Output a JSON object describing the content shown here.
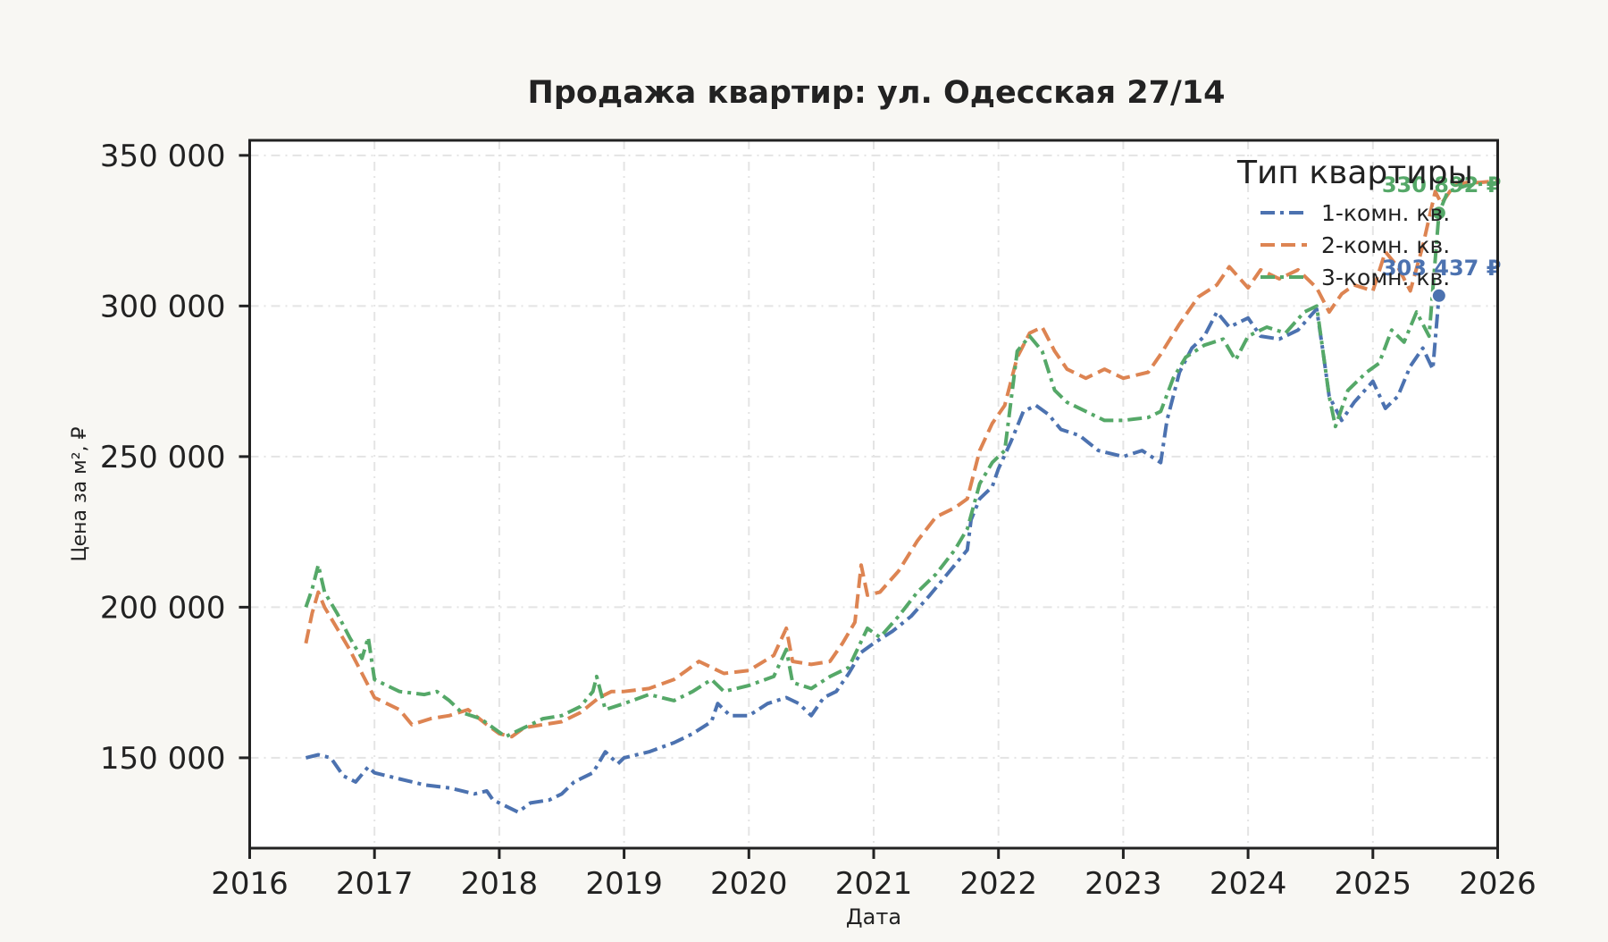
{
  "chart_data": {
    "type": "line",
    "title": "Продажа квартир: ул. Одесская 27/14",
    "xlabel": "Дата",
    "ylabel": "Цена за м², ₽",
    "xlim": [
      2016.0,
      2026.0
    ],
    "ylim": [
      120000,
      355000
    ],
    "x_ticks": [
      2016,
      2017,
      2018,
      2019,
      2020,
      2021,
      2022,
      2023,
      2024,
      2025,
      2026
    ],
    "x_tick_labels": [
      "2016",
      "2017",
      "2018",
      "2019",
      "2020",
      "2021",
      "2022",
      "2023",
      "2024",
      "2025",
      "2026"
    ],
    "y_ticks": [
      150000,
      200000,
      250000,
      300000,
      350000
    ],
    "y_tick_labels": [
      "150 000",
      "200 000",
      "250 000",
      "300 000",
      "350 000"
    ],
    "grid": true,
    "legend": {
      "title": "Тип квартиры",
      "placement": "top-right"
    },
    "series": [
      {
        "name": "1-комн. кв.",
        "color": "#4c72b0",
        "dash": "dashdot",
        "end_label": "303 437 ₽",
        "points": [
          [
            2016.45,
            150000
          ],
          [
            2016.55,
            151000
          ],
          [
            2016.65,
            150000
          ],
          [
            2016.75,
            144000
          ],
          [
            2016.85,
            142000
          ],
          [
            2016.95,
            147000
          ],
          [
            2017.0,
            145000
          ],
          [
            2017.2,
            143000
          ],
          [
            2017.4,
            141000
          ],
          [
            2017.6,
            140000
          ],
          [
            2017.8,
            138000
          ],
          [
            2017.9,
            139000
          ],
          [
            2017.95,
            136000
          ],
          [
            2018.05,
            134000
          ],
          [
            2018.15,
            132000
          ],
          [
            2018.25,
            135000
          ],
          [
            2018.4,
            136000
          ],
          [
            2018.5,
            138000
          ],
          [
            2018.6,
            142000
          ],
          [
            2018.75,
            145000
          ],
          [
            2018.85,
            152000
          ],
          [
            2018.95,
            148000
          ],
          [
            2019.0,
            150000
          ],
          [
            2019.2,
            152000
          ],
          [
            2019.4,
            155000
          ],
          [
            2019.55,
            158000
          ],
          [
            2019.7,
            162000
          ],
          [
            2019.75,
            168000
          ],
          [
            2019.85,
            164000
          ],
          [
            2020.0,
            164000
          ],
          [
            2020.15,
            168000
          ],
          [
            2020.3,
            170000
          ],
          [
            2020.4,
            168000
          ],
          [
            2020.5,
            164000
          ],
          [
            2020.6,
            170000
          ],
          [
            2020.7,
            172000
          ],
          [
            2020.8,
            178000
          ],
          [
            2020.9,
            185000
          ],
          [
            2021.0,
            188000
          ],
          [
            2021.15,
            192000
          ],
          [
            2021.3,
            197000
          ],
          [
            2021.45,
            204000
          ],
          [
            2021.55,
            209000
          ],
          [
            2021.65,
            214000
          ],
          [
            2021.75,
            219000
          ],
          [
            2021.78,
            229000
          ],
          [
            2021.85,
            236000
          ],
          [
            2021.95,
            240000
          ],
          [
            2022.0,
            246000
          ],
          [
            2022.1,
            255000
          ],
          [
            2022.2,
            265000
          ],
          [
            2022.3,
            267000
          ],
          [
            2022.4,
            264000
          ],
          [
            2022.5,
            259000
          ],
          [
            2022.65,
            257000
          ],
          [
            2022.8,
            252000
          ],
          [
            2023.0,
            250000
          ],
          [
            2023.15,
            252000
          ],
          [
            2023.3,
            248000
          ],
          [
            2023.35,
            262000
          ],
          [
            2023.45,
            278000
          ],
          [
            2023.55,
            286000
          ],
          [
            2023.65,
            290000
          ],
          [
            2023.75,
            298000
          ],
          [
            2023.85,
            293000
          ],
          [
            2024.0,
            296000
          ],
          [
            2024.1,
            290000
          ],
          [
            2024.25,
            289000
          ],
          [
            2024.4,
            292000
          ],
          [
            2024.55,
            299000
          ],
          [
            2024.6,
            285000
          ],
          [
            2024.65,
            270000
          ],
          [
            2024.75,
            262000
          ],
          [
            2024.85,
            268000
          ],
          [
            2025.0,
            275000
          ],
          [
            2025.1,
            266000
          ],
          [
            2025.2,
            270000
          ],
          [
            2025.3,
            280000
          ],
          [
            2025.4,
            286000
          ],
          [
            2025.48,
            279000
          ],
          [
            2025.53,
            303437
          ]
        ]
      },
      {
        "name": "2-комн. кв.",
        "color": "#dd8452",
        "dash": "dashed",
        "end_label": "",
        "points": [
          [
            2016.45,
            188000
          ],
          [
            2016.5,
            198000
          ],
          [
            2016.55,
            205000
          ],
          [
            2016.6,
            200000
          ],
          [
            2016.7,
            193000
          ],
          [
            2016.8,
            186000
          ],
          [
            2016.9,
            178000
          ],
          [
            2017.0,
            170000
          ],
          [
            2017.2,
            166000
          ],
          [
            2017.3,
            161000
          ],
          [
            2017.45,
            163000
          ],
          [
            2017.6,
            164000
          ],
          [
            2017.75,
            166000
          ],
          [
            2017.9,
            161000
          ],
          [
            2018.0,
            158000
          ],
          [
            2018.1,
            157000
          ],
          [
            2018.2,
            160000
          ],
          [
            2018.35,
            161000
          ],
          [
            2018.5,
            162000
          ],
          [
            2018.65,
            165000
          ],
          [
            2018.8,
            170000
          ],
          [
            2018.9,
            172000
          ],
          [
            2019.0,
            172000
          ],
          [
            2019.2,
            173000
          ],
          [
            2019.4,
            176000
          ],
          [
            2019.5,
            179000
          ],
          [
            2019.6,
            182000
          ],
          [
            2019.7,
            180000
          ],
          [
            2019.8,
            178000
          ],
          [
            2020.0,
            179000
          ],
          [
            2020.2,
            184000
          ],
          [
            2020.3,
            193000
          ],
          [
            2020.35,
            182000
          ],
          [
            2020.5,
            181000
          ],
          [
            2020.65,
            182000
          ],
          [
            2020.75,
            188000
          ],
          [
            2020.85,
            195000
          ],
          [
            2020.9,
            214000
          ],
          [
            2020.95,
            204000
          ],
          [
            2021.05,
            205000
          ],
          [
            2021.2,
            212000
          ],
          [
            2021.35,
            222000
          ],
          [
            2021.5,
            230000
          ],
          [
            2021.65,
            233000
          ],
          [
            2021.75,
            236000
          ],
          [
            2021.85,
            252000
          ],
          [
            2021.95,
            261000
          ],
          [
            2022.05,
            267000
          ],
          [
            2022.15,
            283000
          ],
          [
            2022.25,
            291000
          ],
          [
            2022.35,
            293000
          ],
          [
            2022.45,
            285000
          ],
          [
            2022.55,
            279000
          ],
          [
            2022.7,
            276000
          ],
          [
            2022.85,
            279000
          ],
          [
            2023.0,
            276000
          ],
          [
            2023.2,
            278000
          ],
          [
            2023.3,
            284000
          ],
          [
            2023.45,
            294000
          ],
          [
            2023.6,
            303000
          ],
          [
            2023.75,
            307000
          ],
          [
            2023.85,
            313000
          ],
          [
            2024.0,
            306000
          ],
          [
            2024.1,
            312000
          ],
          [
            2024.25,
            309000
          ],
          [
            2024.4,
            312000
          ],
          [
            2024.55,
            306000
          ],
          [
            2024.65,
            298000
          ],
          [
            2024.75,
            304000
          ],
          [
            2024.85,
            307000
          ],
          [
            2025.0,
            305000
          ],
          [
            2025.1,
            318000
          ],
          [
            2025.2,
            313000
          ],
          [
            2025.3,
            305000
          ],
          [
            2025.4,
            320000
          ],
          [
            2025.5,
            338000
          ],
          [
            2025.55,
            334000
          ],
          [
            2025.65,
            340000
          ],
          [
            2025.75,
            341000
          ],
          [
            2025.85,
            341000
          ],
          [
            2026.0,
            341500
          ]
        ]
      },
      {
        "name": "3-комн. кв.",
        "color": "#55a868",
        "dash": "dashdot",
        "end_label": "330 892 ₽",
        "points": [
          [
            2016.45,
            200000
          ],
          [
            2016.5,
            206000
          ],
          [
            2016.55,
            214000
          ],
          [
            2016.6,
            205000
          ],
          [
            2016.7,
            198000
          ],
          [
            2016.8,
            190000
          ],
          [
            2016.9,
            183000
          ],
          [
            2016.95,
            190000
          ],
          [
            2017.0,
            176000
          ],
          [
            2017.2,
            172000
          ],
          [
            2017.4,
            171000
          ],
          [
            2017.5,
            172000
          ],
          [
            2017.6,
            169000
          ],
          [
            2017.7,
            165000
          ],
          [
            2017.85,
            163000
          ],
          [
            2017.95,
            160000
          ],
          [
            2018.05,
            157000
          ],
          [
            2018.2,
            160000
          ],
          [
            2018.35,
            163000
          ],
          [
            2018.5,
            164000
          ],
          [
            2018.65,
            167000
          ],
          [
            2018.75,
            172000
          ],
          [
            2018.78,
            177000
          ],
          [
            2018.85,
            166000
          ],
          [
            2019.0,
            168000
          ],
          [
            2019.2,
            171000
          ],
          [
            2019.4,
            169000
          ],
          [
            2019.55,
            172000
          ],
          [
            2019.7,
            176000
          ],
          [
            2019.8,
            172000
          ],
          [
            2020.0,
            174000
          ],
          [
            2020.2,
            177000
          ],
          [
            2020.3,
            186000
          ],
          [
            2020.35,
            175000
          ],
          [
            2020.5,
            173000
          ],
          [
            2020.65,
            177000
          ],
          [
            2020.8,
            180000
          ],
          [
            2020.95,
            193000
          ],
          [
            2021.05,
            190000
          ],
          [
            2021.2,
            197000
          ],
          [
            2021.35,
            205000
          ],
          [
            2021.5,
            211000
          ],
          [
            2021.65,
            219000
          ],
          [
            2021.75,
            226000
          ],
          [
            2021.85,
            241000
          ],
          [
            2021.95,
            248000
          ],
          [
            2022.05,
            252000
          ],
          [
            2022.15,
            285000
          ],
          [
            2022.25,
            290000
          ],
          [
            2022.35,
            285000
          ],
          [
            2022.45,
            272000
          ],
          [
            2022.55,
            268000
          ],
          [
            2022.7,
            265000
          ],
          [
            2022.85,
            262000
          ],
          [
            2023.0,
            262000
          ],
          [
            2023.2,
            263000
          ],
          [
            2023.3,
            265000
          ],
          [
            2023.4,
            276000
          ],
          [
            2023.5,
            283000
          ],
          [
            2023.65,
            287000
          ],
          [
            2023.8,
            289000
          ],
          [
            2023.9,
            282000
          ],
          [
            2024.0,
            290000
          ],
          [
            2024.15,
            293000
          ],
          [
            2024.3,
            291000
          ],
          [
            2024.45,
            298000
          ],
          [
            2024.55,
            300000
          ],
          [
            2024.65,
            270000
          ],
          [
            2024.7,
            260000
          ],
          [
            2024.8,
            272000
          ],
          [
            2024.95,
            278000
          ],
          [
            2025.05,
            281000
          ],
          [
            2025.15,
            292000
          ],
          [
            2025.25,
            288000
          ],
          [
            2025.35,
            298000
          ],
          [
            2025.45,
            290000
          ],
          [
            2025.53,
            330892
          ],
          [
            2025.6,
            338000
          ],
          [
            2025.75,
            340000
          ],
          [
            2026.0,
            341000
          ]
        ]
      }
    ]
  }
}
